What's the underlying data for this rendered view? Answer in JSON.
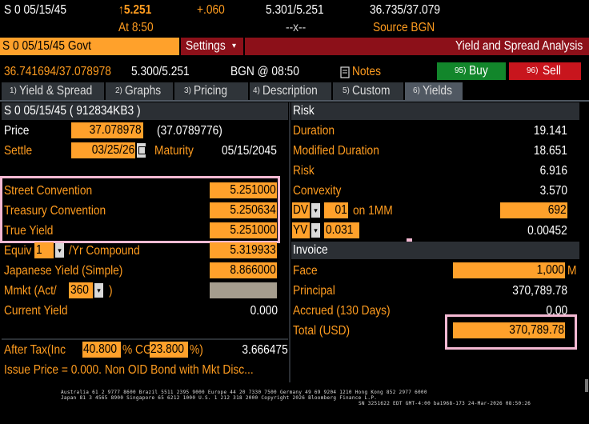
{
  "ticker": {
    "security": "S 0 05/15/45",
    "arrow": "↑",
    "last": "5.251",
    "change": "+.060",
    "bid_ask_yield": "5.301/5.251",
    "bid_ask_price": "36.735/37.079",
    "time": "At 8:50",
    "blank": "--x--",
    "source": "Source BGN"
  },
  "commandbar": {
    "security_field": "S 0 05/15/45 Govt",
    "settings": "Settings",
    "settings_arrow": "▾",
    "title": "Yield and Spread Analysis"
  },
  "quote": {
    "price_pair": "36.741694/37.078978",
    "yield_pair": "5.300/5.251",
    "source_time": "BGN @ 08:50",
    "notes": "Notes",
    "buy": "Buy",
    "buy_key": "95)",
    "sell": "Sell",
    "sell_key": "96)"
  },
  "tabs": [
    {
      "key": "1)",
      "label": "Yield & Spread"
    },
    {
      "key": "2)",
      "label": "Graphs"
    },
    {
      "key": "3)",
      "label": "Pricing"
    },
    {
      "key": "4)",
      "label": "Description"
    },
    {
      "key": "5)",
      "label": "Custom"
    },
    {
      "key": "6)",
      "label": "Yields"
    }
  ],
  "left": {
    "header": "S 0 05/15/45 ( 912834KB3 )",
    "price_label": "Price",
    "price_value": "37.078978",
    "price_paren": "(37.0789776)",
    "settle_label": "Settle",
    "settle_value": "03/25/26",
    "maturity_label": "Maturity",
    "maturity_value": "05/15/2045",
    "street_label": "Street Convention",
    "street_value": "5.251000",
    "treasury_label": "Treasury Convention",
    "treasury_value": "5.250634",
    "true_label": "True Yield",
    "true_value": "5.251000",
    "equiv_label": "Equiv",
    "equiv_sel": "1",
    "equiv_suffix": "/Yr Compound",
    "equiv_value": "5.319933",
    "japanese_label": "Japanese Yield (Simple)",
    "japanese_value": "8.866000",
    "mmkt_label": "Mmkt (Act/",
    "mmkt_sel": "360",
    "mmkt_close": ")",
    "current_label": "Current Yield",
    "current_value": "0.000",
    "aftertax_label": "After Tax(Inc",
    "aftertax_inc": "40.800",
    "aftertax_mid": "% CG",
    "aftertax_cg": "23.800",
    "aftertax_pct": "%)",
    "aftertax_value": "3.666475",
    "issue_note": "Issue Price = 0.000. Non OID Bond with Mkt Disc..."
  },
  "risk": {
    "header": "Risk",
    "duration_label": "Duration",
    "duration_value": "19.141",
    "modified_label": "Modified Duration",
    "modified_value": "18.651",
    "risk_label": "Risk",
    "risk_value": "6.916",
    "convexity_label": "Convexity",
    "convexity_value": "3.570",
    "dv_sel": "DV",
    "dv_num": "01",
    "dv_on": "on 1MM",
    "dv_value": "692",
    "yv_sel": "YV",
    "yv_num": "0.031",
    "yv_value": "0.00452"
  },
  "invoice": {
    "header": "Invoice",
    "face_label": "Face",
    "face_value": "1,000",
    "face_unit": "M",
    "principal_label": "Principal",
    "principal_value": "370,789.78",
    "accrued_label": "Accrued (130 Days)",
    "accrued_value": "0.00",
    "total_label": "Total (USD)",
    "total_value": "370,789.78"
  },
  "footer": {
    "line1": "Australia 61 2 9777 8600 Brazil 5511 2395 9000 Europe 44 20 7330 7500 Germany 49 69 9204 1210 Hong Kong 852 2977 6000",
    "line2": "Japan 81 3 4565 8900       Singapore 65 6212 1000       U.S. 1 212 318 2000        Copyright 2026 Bloomberg Finance L.P.",
    "line3": "SN 3251622 EDT  GMT-4:00 ba1968-173 24-Mar-2026 08:50:26"
  }
}
